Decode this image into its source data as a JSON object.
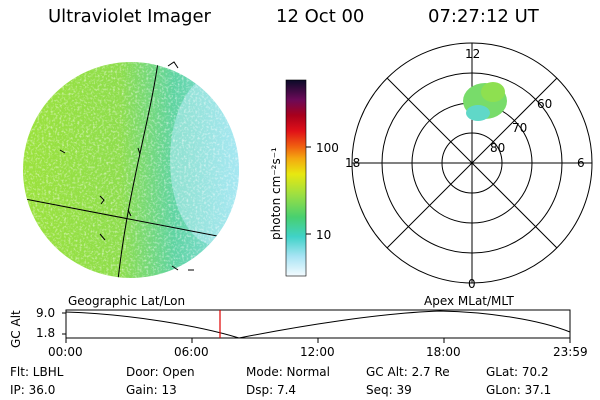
{
  "header": {
    "title": "Ultraviolet Imager",
    "date": "12 Oct 00",
    "time": "07:27:12 UT"
  },
  "colorbar": {
    "unit_label": "photon cm⁻²s⁻¹",
    "ticks": [
      "100",
      "10"
    ],
    "colors": [
      "#0a0a2a",
      "#3a0a5a",
      "#7a0a5a",
      "#b0001a",
      "#e0101a",
      "#f06010",
      "#f0a010",
      "#e0e010",
      "#90e040",
      "#50d060",
      "#40d0c0",
      "#a0e0f0",
      "#f0f8ff"
    ]
  },
  "polar_plot": {
    "mlt_labels": [
      "12",
      "18",
      "6",
      "0"
    ],
    "lat_labels": [
      "60",
      "70",
      "80"
    ]
  },
  "timeline": {
    "left_label": "Geographic Lat/Lon",
    "right_label": "Apex MLat/MLT",
    "axis_title": "GC Alt",
    "y_ticks": [
      "9.0",
      "1.8"
    ],
    "x_ticks": [
      "00:00",
      "06:00",
      "12:00",
      "18:00",
      "23:59"
    ],
    "marker_color": "#e00000"
  },
  "info": {
    "filter": "Flt: LBHL",
    "ip": "IP: 36.0",
    "door": "Door: Open",
    "gain": "Gain: 13",
    "mode": "Mode: Normal",
    "dsp": "Dsp:    7.4",
    "gc_alt": "GC Alt: 2.7 Re",
    "seq": "Seq: 39",
    "glat": "GLat:  70.2",
    "glon": "GLon:  37.1"
  }
}
